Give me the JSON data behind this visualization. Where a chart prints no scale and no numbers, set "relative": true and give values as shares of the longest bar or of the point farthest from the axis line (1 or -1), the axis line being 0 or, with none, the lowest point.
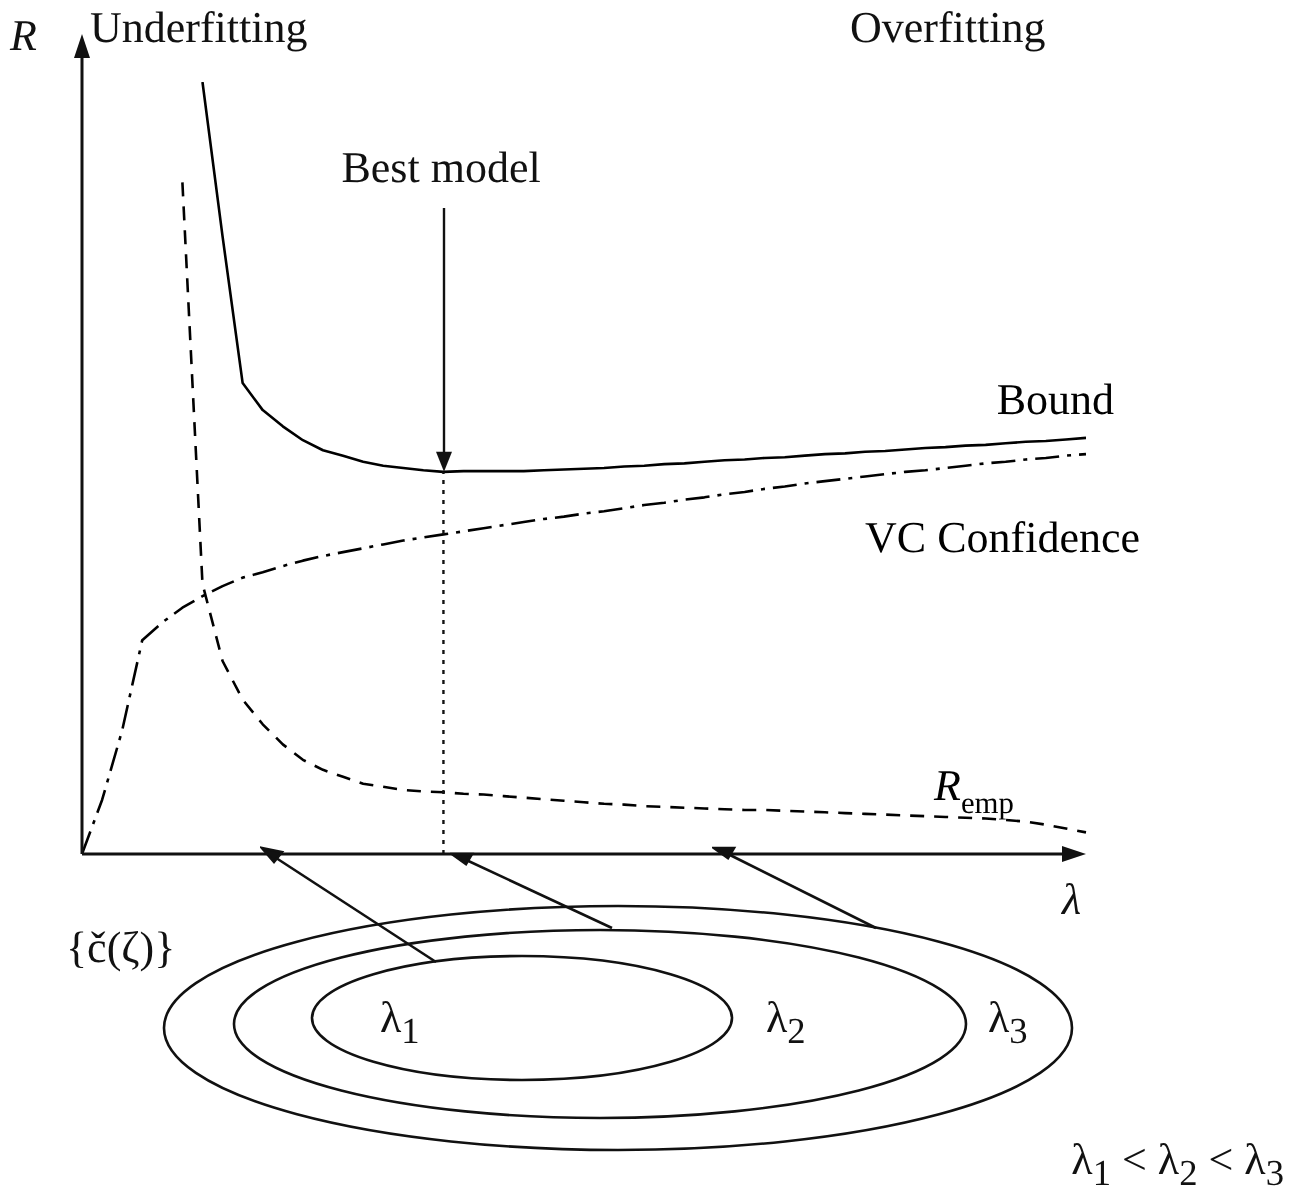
{
  "chart_data": {
    "type": "line",
    "relative": true,
    "xlabel": "λ",
    "ylabel": "R",
    "categories": [
      null,
      null,
      null,
      null,
      null,
      null,
      null,
      null,
      null,
      null,
      null,
      null,
      null,
      null,
      null,
      null,
      null,
      null,
      null,
      null,
      null,
      null,
      null,
      null,
      null,
      null,
      null,
      null,
      null,
      null,
      null,
      null,
      null,
      null,
      null,
      null,
      null,
      null,
      null,
      null,
      null,
      null,
      null,
      null,
      null,
      null,
      null,
      null,
      null,
      null,
      null
    ],
    "series": [
      {
        "name": "Bound",
        "color": "#000000",
        "line_style": "solid",
        "values": [
          null,
          null,
          null,
          null,
          null,
          null,
          1.0,
          0.8,
          0.61,
          0.575,
          0.554,
          0.536,
          0.523,
          0.516,
          0.508,
          0.503,
          0.5,
          0.497,
          0.495,
          0.496,
          0.496,
          0.496,
          0.496,
          0.497,
          0.498,
          0.499,
          0.5,
          0.502,
          0.503,
          0.505,
          0.506,
          0.508,
          0.51,
          0.511,
          0.513,
          0.514,
          0.516,
          0.518,
          0.519,
          0.521,
          0.522,
          0.524,
          0.526,
          0.527,
          0.529,
          0.53,
          0.532,
          0.534,
          0.535,
          0.537,
          0.539
        ]
      },
      {
        "name": "VC Confidence",
        "color": "#000000",
        "line_style": "dashdot",
        "values": [
          0,
          0.07,
          0.16,
          0.277,
          0.3,
          0.319,
          0.334,
          0.347,
          0.358,
          0.365,
          0.373,
          0.38,
          0.386,
          0.391,
          0.396,
          0.401,
          0.406,
          0.41,
          0.414,
          0.418,
          0.422,
          0.426,
          0.43,
          0.434,
          0.437,
          0.441,
          0.444,
          0.448,
          0.452,
          0.455,
          0.459,
          0.462,
          0.466,
          0.469,
          0.473,
          0.476,
          0.48,
          0.483,
          0.486,
          0.489,
          0.492,
          0.495,
          0.497,
          0.5,
          0.503,
          0.506,
          0.508,
          0.511,
          0.513,
          0.516,
          0.518
        ]
      },
      {
        "name": "R$_{emp}$",
        "color": "#000000",
        "line_style": "dashed",
        "values": [
          null,
          null,
          null,
          null,
          null,
          0.87,
          0.35,
          0.25,
          0.2,
          0.168,
          0.142,
          0.122,
          0.109,
          0.1,
          0.091,
          0.087,
          0.083,
          0.081,
          0.08,
          0.078,
          0.077,
          0.075,
          0.073,
          0.071,
          0.069,
          0.067,
          0.065,
          0.064,
          0.062,
          0.061,
          0.06,
          0.059,
          0.058,
          0.057,
          0.057,
          0.056,
          0.055,
          0.054,
          0.053,
          0.052,
          0.051,
          0.05,
          0.049,
          0.048,
          0.047,
          0.046,
          0.044,
          0.042,
          0.038,
          0.033,
          0.028
        ]
      }
    ],
    "annotations": [
      "Underfitting",
      "Overfitting",
      "Best model",
      "{č(ζ)}",
      "λ$_{1}$",
      "λ$_{2}$",
      "λ$_{3}$",
      "λ$_{1}$ < λ$_{2}$ < λ$_{3}$"
    ],
    "legend": false,
    "grid": false,
    "marker": "none"
  }
}
